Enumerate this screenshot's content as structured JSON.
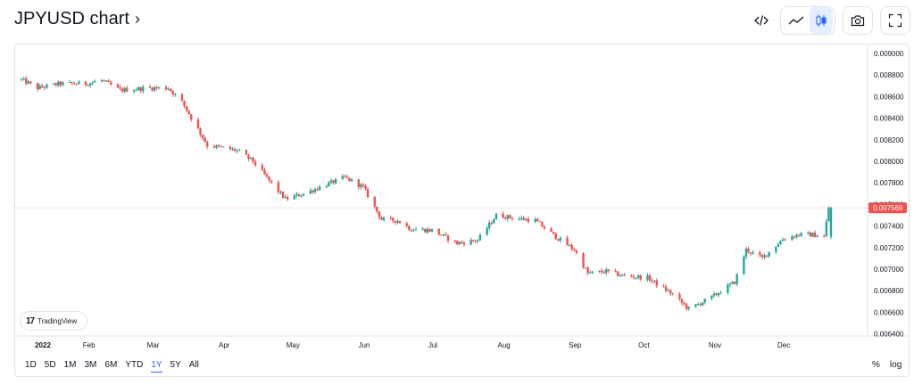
{
  "header": {
    "title": "JPYUSD chart",
    "title_chevron": "›",
    "toolbar": {
      "embed_icon": "code-icon",
      "line_icon": "line-chart-icon",
      "candle_icon": "candlestick-icon",
      "snapshot_icon": "camera-icon",
      "fullscreen_icon": "fullscreen-icon",
      "active_chart_type": "candles"
    }
  },
  "logo": {
    "mark": "17",
    "text": "TradingView"
  },
  "range_bar": {
    "items": [
      "1D",
      "5D",
      "1M",
      "3M",
      "6M",
      "YTD",
      "1Y",
      "5Y",
      "All"
    ],
    "active": "1Y"
  },
  "scale_options": {
    "percent": "%",
    "log": "log"
  },
  "colors": {
    "up": "#26a69a",
    "down": "#ef5350",
    "last_price_bg": "#ef5350",
    "grid": "#f0f3fa",
    "axis_text": "#131722",
    "active_range": "#2962ff"
  },
  "chart_data": {
    "type": "candlestick",
    "symbol": "JPYUSD",
    "x_axis_labels": [
      "2022",
      "Feb",
      "Mar",
      "Apr",
      "May",
      "Jun",
      "Jul",
      "Aug",
      "Sep",
      "Oct",
      "Nov",
      "Dec"
    ],
    "y_ticks": [
      "0.009000",
      "0.008800",
      "0.008600",
      "0.008400",
      "0.008200",
      "0.008000",
      "0.007800",
      "0.007600",
      "0.007400",
      "0.007200",
      "0.007000",
      "0.006800",
      "0.006600",
      "0.006400"
    ],
    "ylim": [
      0.0064,
      0.0091
    ],
    "last_price": "0.007569",
    "grid": false,
    "approx_close_path": [
      [
        "2022-01-01",
        0.00878
      ],
      [
        "2022-01-10",
        0.00868
      ],
      [
        "2022-01-20",
        0.00872
      ],
      [
        "2022-01-31",
        0.00872
      ],
      [
        "2022-02-07",
        0.00875
      ],
      [
        "2022-02-15",
        0.00866
      ],
      [
        "2022-02-28",
        0.00868
      ],
      [
        "2022-03-08",
        0.00868
      ],
      [
        "2022-03-14",
        0.00855
      ],
      [
        "2022-03-25",
        0.00815
      ],
      [
        "2022-04-07",
        0.0081
      ],
      [
        "2022-04-14",
        0.008
      ],
      [
        "2022-04-21",
        0.00782
      ],
      [
        "2022-04-28",
        0.00765
      ],
      [
        "2022-05-06",
        0.0077
      ],
      [
        "2022-05-13",
        0.00776
      ],
      [
        "2022-05-24",
        0.00785
      ],
      [
        "2022-06-01",
        0.00776
      ],
      [
        "2022-06-09",
        0.00746
      ],
      [
        "2022-06-16",
        0.00745
      ],
      [
        "2022-06-22",
        0.00737
      ],
      [
        "2022-07-01",
        0.00736
      ],
      [
        "2022-07-12",
        0.00724
      ],
      [
        "2022-07-21",
        0.00727
      ],
      [
        "2022-07-29",
        0.0075
      ],
      [
        "2022-08-04",
        0.00748
      ],
      [
        "2022-08-15",
        0.00745
      ],
      [
        "2022-08-24",
        0.0073
      ],
      [
        "2022-09-01",
        0.00718
      ],
      [
        "2022-09-07",
        0.00696
      ],
      [
        "2022-09-15",
        0.00698
      ],
      [
        "2022-09-22",
        0.00694
      ],
      [
        "2022-10-03",
        0.00692
      ],
      [
        "2022-10-13",
        0.00678
      ],
      [
        "2022-10-21",
        0.00663
      ],
      [
        "2022-10-31",
        0.00674
      ],
      [
        "2022-11-10",
        0.00688
      ],
      [
        "2022-11-15",
        0.00718
      ],
      [
        "2022-11-22",
        0.0071
      ],
      [
        "2022-12-01",
        0.00728
      ],
      [
        "2022-12-08",
        0.00732
      ],
      [
        "2022-12-14",
        0.00732
      ],
      [
        "2022-12-19",
        0.0073
      ],
      [
        "2022-12-21",
        0.00757
      ]
    ]
  }
}
